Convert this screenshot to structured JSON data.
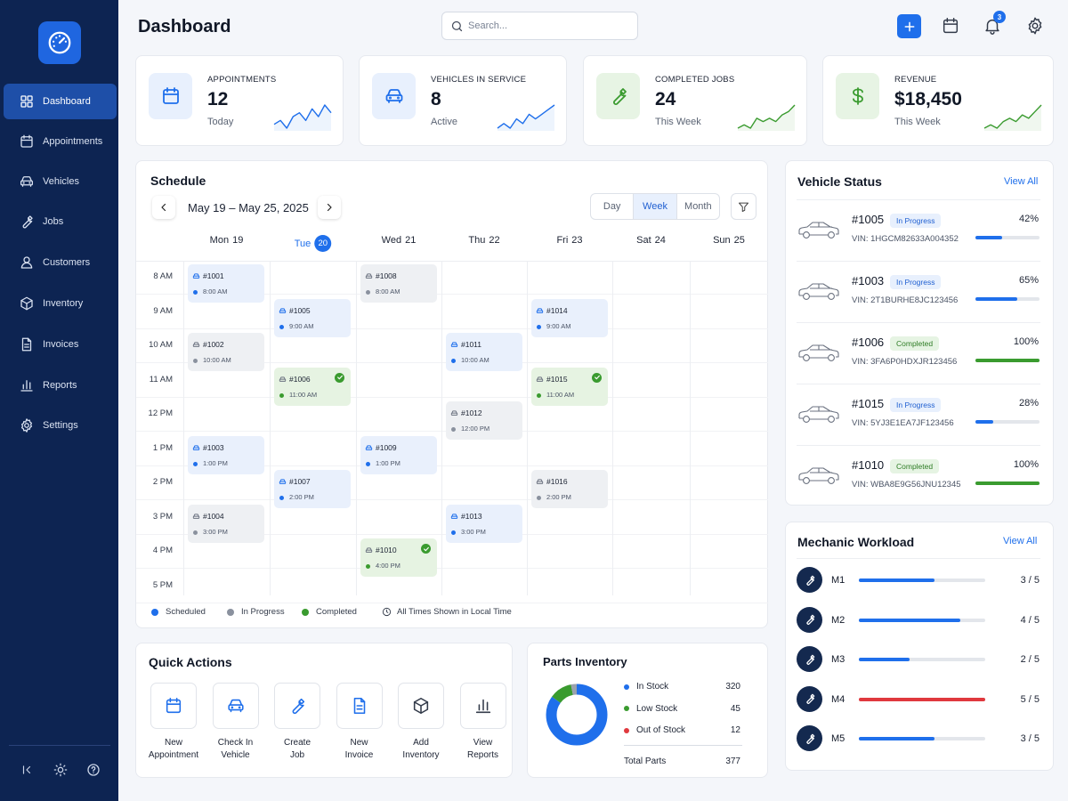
{
  "sidebar": {
    "items": [
      {
        "label": "Dashboard",
        "icon": "grid-icon"
      },
      {
        "label": "Appointments",
        "icon": "calendar-icon"
      },
      {
        "label": "Vehicles",
        "icon": "car-icon"
      },
      {
        "label": "Jobs",
        "icon": "wrench-icon"
      },
      {
        "label": "Customers",
        "icon": "user-icon"
      },
      {
        "label": "Inventory",
        "icon": "box-icon"
      },
      {
        "label": "Invoices",
        "icon": "document-icon"
      },
      {
        "label": "Reports",
        "icon": "bar-chart-icon"
      },
      {
        "label": "Settings",
        "icon": "gear-icon"
      }
    ]
  },
  "header": {
    "title": "Dashboard",
    "search_placeholder": "Search...",
    "notification_count": "3"
  },
  "stats": [
    {
      "label": "APPOINTMENTS",
      "value": "12",
      "sub": "Today",
      "icon": "calendar-icon",
      "accent": "#1f6feb",
      "trend": [
        5,
        6,
        4,
        7,
        8,
        6,
        9,
        7,
        10,
        8
      ]
    },
    {
      "label": "VEHICLES IN SERVICE",
      "value": "8",
      "sub": "Active",
      "icon": "car-icon",
      "accent": "#1f6feb",
      "trend": [
        3,
        4,
        3,
        5,
        4,
        6,
        5,
        6,
        7,
        8
      ]
    },
    {
      "label": "COMPLETED JOBS",
      "value": "24",
      "sub": "This Week",
      "icon": "wrench-icon",
      "accent": "#3a9b2f",
      "trend": [
        3,
        4,
        3,
        6,
        5,
        6,
        5,
        7,
        8,
        10
      ]
    },
    {
      "label": "REVENUE",
      "value": "$18,450",
      "sub": "This Week",
      "icon": "dollar-icon",
      "accent": "#3a9b2f",
      "trend": [
        3,
        4,
        3,
        5,
        6,
        5,
        7,
        6,
        8,
        10
      ]
    }
  ],
  "schedule": {
    "title": "Schedule",
    "date_range": "May 19 – May 25, 2025",
    "views": [
      "Day",
      "Week",
      "Month"
    ],
    "selected_view": "Week",
    "days": [
      {
        "name": "Mon",
        "num": "19",
        "today": false
      },
      {
        "name": "Tue",
        "num": "20",
        "today": true
      },
      {
        "name": "Wed",
        "num": "21",
        "today": false
      },
      {
        "name": "Thu",
        "num": "22",
        "today": false
      },
      {
        "name": "Fri",
        "num": "23",
        "today": false
      },
      {
        "name": "Sat",
        "num": "24",
        "today": false
      },
      {
        "name": "Sun",
        "num": "25",
        "today": false
      }
    ],
    "hours": [
      "8 AM",
      "9 AM",
      "10 AM",
      "11 AM",
      "12 PM",
      "1 PM",
      "2 PM",
      "3 PM",
      "4 PM",
      "5 PM"
    ],
    "events": [
      {
        "id": "#1001",
        "time": "8:00 AM",
        "day": 0,
        "hour": 8,
        "status": "scheduled"
      },
      {
        "id": "#1002",
        "time": "10:00 AM",
        "day": 0,
        "hour": 10,
        "status": "progress"
      },
      {
        "id": "#1003",
        "time": "1:00 PM",
        "day": 0,
        "hour": 13,
        "status": "scheduled"
      },
      {
        "id": "#1004",
        "time": "3:00 PM",
        "day": 0,
        "hour": 15,
        "status": "progress"
      },
      {
        "id": "#1005",
        "time": "9:00 AM",
        "day": 1,
        "hour": 9,
        "status": "scheduled"
      },
      {
        "id": "#1006",
        "time": "11:00 AM",
        "day": 1,
        "hour": 11,
        "status": "completed"
      },
      {
        "id": "#1007",
        "time": "2:00 PM",
        "day": 1,
        "hour": 14,
        "status": "scheduled"
      },
      {
        "id": "#1008",
        "time": "8:00 AM",
        "day": 2,
        "hour": 8,
        "status": "progress"
      },
      {
        "id": "#1009",
        "time": "1:00 PM",
        "day": 2,
        "hour": 13,
        "status": "scheduled"
      },
      {
        "id": "#1010",
        "time": "4:00 PM",
        "day": 2,
        "hour": 16,
        "status": "completed"
      },
      {
        "id": "#1011",
        "time": "10:00 AM",
        "day": 3,
        "hour": 10,
        "status": "scheduled"
      },
      {
        "id": "#1012",
        "time": "12:00 PM",
        "day": 3,
        "hour": 12,
        "status": "progress"
      },
      {
        "id": "#1013",
        "time": "3:00 PM",
        "day": 3,
        "hour": 15,
        "status": "scheduled"
      },
      {
        "id": "#1014",
        "time": "9:00 AM",
        "day": 4,
        "hour": 9,
        "status": "scheduled"
      },
      {
        "id": "#1015",
        "time": "11:00 AM",
        "day": 4,
        "hour": 11,
        "status": "completed"
      },
      {
        "id": "#1016",
        "time": "2:00 PM",
        "day": 4,
        "hour": 14,
        "status": "progress"
      }
    ],
    "legend": [
      "Scheduled",
      "In Progress",
      "Completed"
    ],
    "timezone_note": "All Times Shown in Local Time",
    "status_colors": {
      "scheduled": "#1f6feb",
      "progress": "#8a919e",
      "completed": "#3a9b2f"
    }
  },
  "vehicle_status": {
    "title": "Vehicle Status",
    "view_all": "View All",
    "vin_prefix": "VIN: ",
    "vehicles": [
      {
        "id": "#1005",
        "status": "In Progress",
        "vin": "1HGCM82633A004352",
        "percent": "42%",
        "progress": 42
      },
      {
        "id": "#1003",
        "status": "In Progress",
        "vin": "2T1BURHE8JC123456",
        "percent": "65%",
        "progress": 65
      },
      {
        "id": "#1006",
        "status": "Completed",
        "vin": "3FA6P0HDXJR123456",
        "percent": "100%",
        "progress": 100
      },
      {
        "id": "#1015",
        "status": "In Progress",
        "vin": "5YJ3E1EA7JF123456",
        "percent": "28%",
        "progress": 28
      },
      {
        "id": "#1010",
        "status": "Completed",
        "vin": "WBA8E9G56JNU12345",
        "percent": "100%",
        "progress": 100
      }
    ]
  },
  "mechanic_workload": {
    "title": "Mechanic Workload",
    "view_all": "View All",
    "mechanics": [
      {
        "name": "M1",
        "count": "3 / 5",
        "load": 0.6,
        "color": "#1f6feb"
      },
      {
        "name": "M2",
        "count": "4 / 5",
        "load": 0.8,
        "color": "#1f6feb"
      },
      {
        "name": "M3",
        "count": "2 / 5",
        "load": 0.4,
        "color": "#1f6feb"
      },
      {
        "name": "M4",
        "count": "5 / 5",
        "load": 1.0,
        "color": "#e0393e"
      },
      {
        "name": "M5",
        "count": "3 / 5",
        "load": 0.6,
        "color": "#1f6feb"
      }
    ]
  },
  "quick_actions": {
    "title": "Quick Actions",
    "items": [
      {
        "label": "New\nAppointment",
        "icon": "calendar-icon",
        "color": "#1f6feb"
      },
      {
        "label": "Check In\nVehicle",
        "icon": "car-icon",
        "color": "#1f6feb"
      },
      {
        "label": "Create\nJob",
        "icon": "wrench-icon",
        "color": "#1f6feb"
      },
      {
        "label": "New\nInvoice",
        "icon": "document-icon",
        "color": "#1f6feb"
      },
      {
        "label": "Add\nInventory",
        "icon": "box-icon",
        "color": "#333b4a"
      },
      {
        "label": "View\nReports",
        "icon": "bar-chart-icon",
        "color": "#333b4a"
      }
    ]
  },
  "parts_inventory": {
    "title": "Parts Inventory",
    "items": [
      {
        "label": "In Stock",
        "value": "320",
        "count": 320,
        "color": "#1f6feb"
      },
      {
        "label": "Low Stock",
        "value": "45",
        "count": 45,
        "color": "#3a9b2f"
      },
      {
        "label": "Out of Stock",
        "value": "12",
        "count": 12,
        "color": "#e0393e"
      }
    ],
    "total_label": "Total Parts",
    "total_value": "377"
  }
}
